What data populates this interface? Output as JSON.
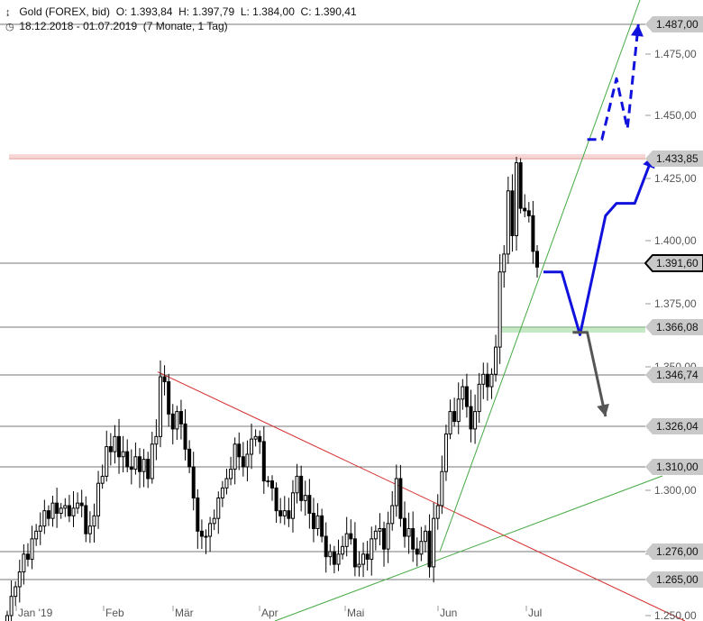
{
  "header": {
    "symbol_icon": "candlestick-icon",
    "title": "Gold (FOREX, bid)",
    "ohlc": "O: 1.393,84  H: 1.397,79  L: 1.384,00  C: 1.390,41",
    "clock_icon": "clock-icon",
    "range": "18.12.2018 - 01.07.2019  (7 Monate, 1 Tag)"
  },
  "colors": {
    "candle": "#000000",
    "resistance_line": "#e06666",
    "support_zone": "#9fd89f",
    "trend_green": "#44aa44",
    "trend_red": "#d62a2a",
    "scenario_blue": "#1111dd",
    "scenario_grey": "#555555",
    "marker_bg": "#c9c9c9"
  },
  "chart_data": {
    "type": "candlestick",
    "title": "Gold (FOREX, bid)",
    "xlabel": "",
    "ylabel": "",
    "ylim": [
      1250,
      1500
    ],
    "x_ticks": [
      "Jan '19",
      "Feb",
      "Mär",
      "Apr",
      "Mai",
      "Jun",
      "Jul"
    ],
    "y_ticks": [
      "1.250,00",
      "1.275,00",
      "1.300,00",
      "1.350,00",
      "1.375,00",
      "1.400,00",
      "1.425,00",
      "1.450,00",
      "1.475,00"
    ],
    "y_tick_values": [
      1250,
      1275,
      1300,
      1350,
      1375,
      1400,
      1425,
      1450,
      1475
    ],
    "horizontal_levels": [
      {
        "value": 1487.0,
        "label": "1.487,00",
        "style": "grey"
      },
      {
        "value": 1433.85,
        "label": "1.433,85",
        "style": "red-zone"
      },
      {
        "value": 1391.6,
        "label": "1.391,60",
        "style": "current"
      },
      {
        "value": 1366.08,
        "label": "1.366,08",
        "style": "green-zone"
      },
      {
        "value": 1346.74,
        "label": "1.346,74",
        "style": "grey"
      },
      {
        "value": 1326.04,
        "label": "1.326,04",
        "style": "grey"
      },
      {
        "value": 1310.0,
        "label": "1.310,00",
        "style": "grey"
      },
      {
        "value": 1276.0,
        "label": "1.276,00",
        "style": "grey"
      },
      {
        "value": 1265.0,
        "label": "1.265,00",
        "style": "grey"
      }
    ],
    "series": [
      {
        "close": [
          1250,
          1258,
          1262,
          1268,
          1275,
          1273,
          1281,
          1284,
          1286,
          1292,
          1289,
          1295,
          1291,
          1293,
          1294,
          1290,
          1293,
          1295,
          1294,
          1283,
          1286,
          1290,
          1303,
          1306,
          1318,
          1316,
          1322,
          1314,
          1316,
          1310,
          1309,
          1314,
          1308,
          1313,
          1305,
          1319,
          1322,
          1346,
          1344,
          1331,
          1325,
          1332,
          1327,
          1317,
          1310,
          1297,
          1284,
          1282,
          1282,
          1287,
          1289,
          1297,
          1301,
          1305,
          1309,
          1319,
          1314,
          1310,
          1315,
          1321,
          1322,
          1320,
          1304,
          1304,
          1301,
          1292,
          1290,
          1292,
          1289,
          1299,
          1306,
          1296,
          1298,
          1291,
          1285,
          1290,
          1282,
          1274,
          1276,
          1271,
          1275,
          1278,
          1283,
          1281,
          1270,
          1271,
          1275,
          1273,
          1281,
          1284,
          1285,
          1277,
          1287,
          1294,
          1305,
          1289,
          1282,
          1285,
          1277,
          1275,
          1280,
          1284,
          1270,
          1289,
          1294,
          1308,
          1323,
          1332,
          1328,
          1337,
          1342,
          1334,
          1325,
          1332,
          1343,
          1347,
          1342,
          1347,
          1358,
          1388,
          1395,
          1420,
          1402,
          1432,
          1413,
          1412,
          1410,
          1396,
          1390
        ]
      }
    ],
    "scenarios": [
      {
        "name": "bullish",
        "style": "solid",
        "color": "blue",
        "points": [
          [
            0,
            1388
          ],
          [
            5,
            1388
          ],
          [
            10,
            1363
          ],
          [
            17,
            1410
          ],
          [
            20,
            1415
          ],
          [
            25,
            1415
          ],
          [
            30,
            1435
          ]
        ]
      },
      {
        "name": "bullish-extended",
        "style": "dashed",
        "color": "blue",
        "points": [
          [
            12,
            1441
          ],
          [
            16,
            1441
          ],
          [
            20,
            1465
          ],
          [
            23,
            1445
          ],
          [
            26,
            1487
          ]
        ]
      },
      {
        "name": "bearish",
        "style": "solid",
        "color": "grey",
        "points": [
          [
            8,
            1364
          ],
          [
            12,
            1364
          ],
          [
            17,
            1330
          ]
        ]
      }
    ]
  }
}
